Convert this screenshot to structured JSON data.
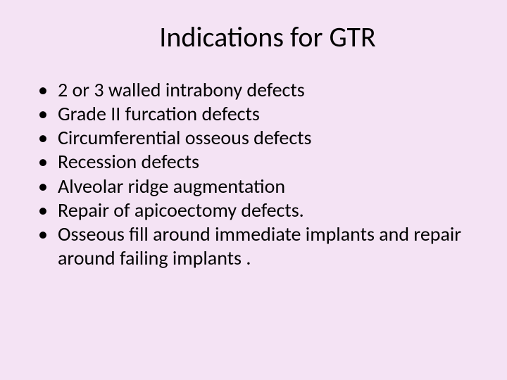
{
  "background_color": "#f4e3f4",
  "text_color": "#000000",
  "title": {
    "text": "Indications for GTR",
    "fontsize": 40,
    "align": "center"
  },
  "bullets": {
    "fontsize": 28,
    "items": [
      "2 or 3 walled intrabony defects",
      "Grade II furcation defects",
      "Circumferential osseous defects",
      "Recession defects",
      "Alveolar ridge augmentation",
      "Repair of apicoectomy defects.",
      "Osseous fill around immediate implants and repair around failing implants ."
    ]
  }
}
